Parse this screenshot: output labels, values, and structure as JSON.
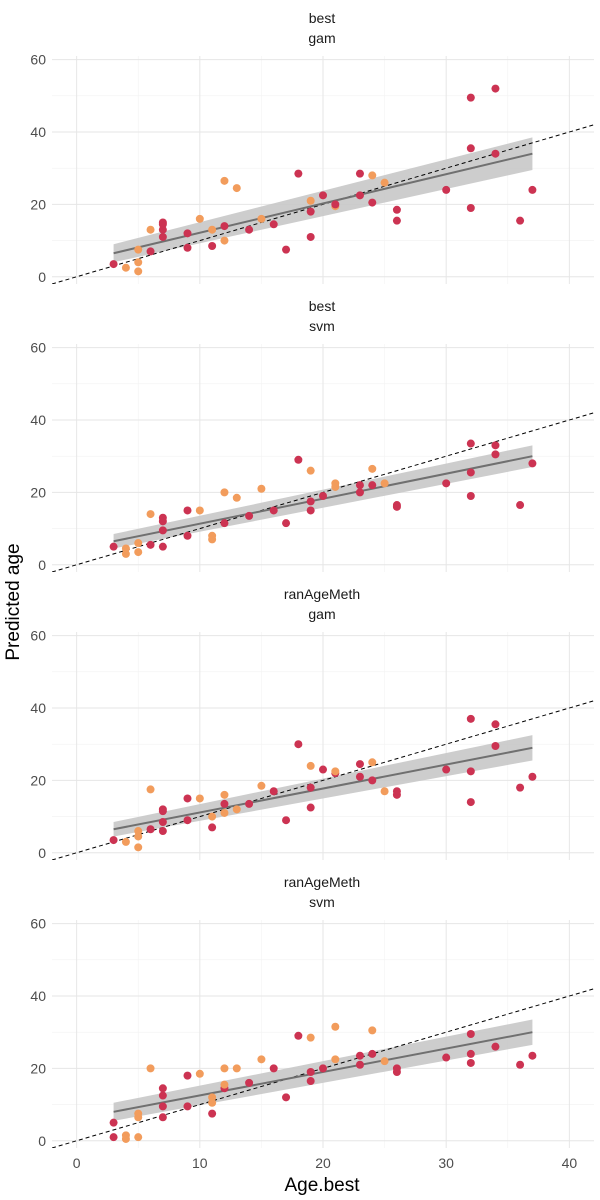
{
  "chart_data": {
    "type": "scatter",
    "xlabel": "Age.best",
    "ylabel": "Predicted age",
    "xlim": [
      -2,
      42
    ],
    "ylim": [
      -2,
      61
    ],
    "x_ticks": [
      0,
      10,
      20,
      30,
      40
    ],
    "y_ticks": [
      0,
      20,
      40,
      60
    ],
    "grid": true,
    "reference_line": "identity (dashed)",
    "colors": {
      "red": "#cc3352",
      "orange": "#f29c5c",
      "fit": "#707070",
      "band": "#c8c8c8"
    },
    "panels": [
      {
        "strip": [
          "best",
          "gam"
        ],
        "fit": {
          "x": [
            3,
            37
          ],
          "y": [
            6.5,
            34
          ],
          "se_lo": [
            4.0,
            29.5
          ],
          "se_hi": [
            9.0,
            38.5
          ]
        },
        "points": [
          [
            3,
            3.5,
            "red"
          ],
          [
            4,
            2.5,
            "orange"
          ],
          [
            5,
            1.5,
            "orange"
          ],
          [
            5,
            4,
            "orange"
          ],
          [
            5,
            7.5,
            "orange"
          ],
          [
            6,
            7,
            "red"
          ],
          [
            6,
            13,
            "orange"
          ],
          [
            7,
            11,
            "red"
          ],
          [
            7,
            13,
            "red"
          ],
          [
            7,
            14.5,
            "red"
          ],
          [
            7,
            15,
            "red"
          ],
          [
            9,
            8,
            "red"
          ],
          [
            9,
            12,
            "red"
          ],
          [
            10,
            16,
            "orange"
          ],
          [
            11,
            8.5,
            "red"
          ],
          [
            11,
            13,
            "orange"
          ],
          [
            12,
            10,
            "orange"
          ],
          [
            12,
            14,
            "red"
          ],
          [
            12,
            26.5,
            "orange"
          ],
          [
            13,
            24.5,
            "orange"
          ],
          [
            14,
            13,
            "red"
          ],
          [
            15,
            16,
            "orange"
          ],
          [
            16,
            14.5,
            "red"
          ],
          [
            17,
            7.5,
            "red"
          ],
          [
            18,
            28.5,
            "red"
          ],
          [
            19,
            11,
            "red"
          ],
          [
            19,
            18,
            "red"
          ],
          [
            19,
            21,
            "orange"
          ],
          [
            20,
            22.5,
            "red"
          ],
          [
            21,
            19.5,
            "orange"
          ],
          [
            21,
            20,
            "red"
          ],
          [
            23,
            22.5,
            "red"
          ],
          [
            23,
            28.5,
            "red"
          ],
          [
            24,
            20.5,
            "red"
          ],
          [
            24,
            28,
            "orange"
          ],
          [
            25,
            26,
            "orange"
          ],
          [
            26,
            15.5,
            "red"
          ],
          [
            26,
            18.5,
            "red"
          ],
          [
            30,
            24,
            "red"
          ],
          [
            32,
            19,
            "red"
          ],
          [
            32,
            35.5,
            "red"
          ],
          [
            32,
            49.5,
            "red"
          ],
          [
            34,
            34,
            "red"
          ],
          [
            34,
            52,
            "red"
          ],
          [
            36,
            15.5,
            "red"
          ],
          [
            37,
            24,
            "red"
          ]
        ]
      },
      {
        "strip": [
          "best",
          "svm"
        ],
        "fit": {
          "x": [
            3,
            37
          ],
          "y": [
            6.5,
            30
          ],
          "se_lo": [
            4.5,
            27
          ],
          "se_hi": [
            8.5,
            33
          ]
        },
        "points": [
          [
            3,
            5,
            "red"
          ],
          [
            4,
            3,
            "orange"
          ],
          [
            4,
            4.5,
            "orange"
          ],
          [
            5,
            3.5,
            "orange"
          ],
          [
            5,
            6,
            "orange"
          ],
          [
            6,
            5.5,
            "red"
          ],
          [
            6,
            14,
            "orange"
          ],
          [
            7,
            5,
            "red"
          ],
          [
            7,
            9.5,
            "red"
          ],
          [
            7,
            12,
            "red"
          ],
          [
            7,
            13,
            "red"
          ],
          [
            9,
            8,
            "red"
          ],
          [
            9,
            15,
            "red"
          ],
          [
            10,
            15,
            "orange"
          ],
          [
            11,
            7,
            "orange"
          ],
          [
            11,
            8,
            "orange"
          ],
          [
            12,
            11.5,
            "red"
          ],
          [
            12,
            20,
            "orange"
          ],
          [
            13,
            18.5,
            "orange"
          ],
          [
            14,
            13.5,
            "red"
          ],
          [
            15,
            21,
            "orange"
          ],
          [
            16,
            15,
            "red"
          ],
          [
            17,
            11.5,
            "red"
          ],
          [
            18,
            29,
            "red"
          ],
          [
            19,
            15,
            "red"
          ],
          [
            19,
            17.5,
            "red"
          ],
          [
            19,
            26,
            "orange"
          ],
          [
            20,
            19,
            "red"
          ],
          [
            21,
            21.5,
            "orange"
          ],
          [
            21,
            22.5,
            "orange"
          ],
          [
            23,
            20,
            "red"
          ],
          [
            23,
            22,
            "red"
          ],
          [
            24,
            22,
            "red"
          ],
          [
            24,
            26.5,
            "orange"
          ],
          [
            25,
            22.5,
            "orange"
          ],
          [
            26,
            16,
            "red"
          ],
          [
            26,
            16.5,
            "red"
          ],
          [
            30,
            22.5,
            "red"
          ],
          [
            32,
            19,
            "red"
          ],
          [
            32,
            25.5,
            "red"
          ],
          [
            32,
            33.5,
            "red"
          ],
          [
            34,
            30.5,
            "red"
          ],
          [
            34,
            33,
            "red"
          ],
          [
            36,
            16.5,
            "red"
          ],
          [
            37,
            28,
            "red"
          ]
        ]
      },
      {
        "strip": [
          "ranAgeMeth",
          "gam"
        ],
        "fit": {
          "x": [
            3,
            37
          ],
          "y": [
            6.5,
            29
          ],
          "se_lo": [
            4.5,
            25.5
          ],
          "se_hi": [
            8.5,
            32.5
          ]
        },
        "points": [
          [
            3,
            3.5,
            "red"
          ],
          [
            4,
            3,
            "orange"
          ],
          [
            5,
            1.5,
            "orange"
          ],
          [
            5,
            4.5,
            "orange"
          ],
          [
            5,
            6,
            "orange"
          ],
          [
            6,
            6.5,
            "red"
          ],
          [
            6,
            17.5,
            "orange"
          ],
          [
            7,
            6,
            "red"
          ],
          [
            7,
            8.5,
            "red"
          ],
          [
            7,
            11.5,
            "red"
          ],
          [
            7,
            12,
            "red"
          ],
          [
            9,
            9,
            "red"
          ],
          [
            9,
            15,
            "red"
          ],
          [
            10,
            15,
            "orange"
          ],
          [
            11,
            7,
            "red"
          ],
          [
            11,
            10,
            "orange"
          ],
          [
            12,
            11,
            "orange"
          ],
          [
            12,
            13.5,
            "red"
          ],
          [
            12,
            16,
            "orange"
          ],
          [
            13,
            12,
            "orange"
          ],
          [
            14,
            13.5,
            "red"
          ],
          [
            15,
            18.5,
            "orange"
          ],
          [
            16,
            17,
            "red"
          ],
          [
            17,
            9,
            "red"
          ],
          [
            18,
            30,
            "red"
          ],
          [
            19,
            12.5,
            "red"
          ],
          [
            19,
            18,
            "red"
          ],
          [
            19,
            24,
            "orange"
          ],
          [
            20,
            23,
            "red"
          ],
          [
            21,
            22,
            "red"
          ],
          [
            21,
            22.5,
            "orange"
          ],
          [
            23,
            21,
            "red"
          ],
          [
            23,
            24.5,
            "red"
          ],
          [
            24,
            20,
            "red"
          ],
          [
            24,
            25,
            "orange"
          ],
          [
            25,
            17,
            "orange"
          ],
          [
            26,
            16,
            "red"
          ],
          [
            26,
            17,
            "red"
          ],
          [
            30,
            23,
            "red"
          ],
          [
            32,
            14,
            "red"
          ],
          [
            32,
            22.5,
            "red"
          ],
          [
            32,
            37,
            "red"
          ],
          [
            34,
            29.5,
            "red"
          ],
          [
            34,
            35.5,
            "red"
          ],
          [
            36,
            18,
            "red"
          ],
          [
            37,
            21,
            "red"
          ]
        ]
      },
      {
        "strip": [
          "ranAgeMeth",
          "svm"
        ],
        "fit": {
          "x": [
            3,
            37
          ],
          "y": [
            8,
            30
          ],
          "se_lo": [
            5.5,
            26.5
          ],
          "se_hi": [
            10.5,
            33.5
          ]
        },
        "points": [
          [
            3,
            1,
            "red"
          ],
          [
            3,
            5,
            "red"
          ],
          [
            4,
            0.5,
            "orange"
          ],
          [
            4,
            1.5,
            "orange"
          ],
          [
            5,
            1,
            "orange"
          ],
          [
            5,
            6.5,
            "orange"
          ],
          [
            5,
            7.5,
            "orange"
          ],
          [
            6,
            20,
            "orange"
          ],
          [
            7,
            6.5,
            "red"
          ],
          [
            7,
            9.5,
            "red"
          ],
          [
            7,
            12.5,
            "red"
          ],
          [
            7,
            14.5,
            "red"
          ],
          [
            9,
            9.5,
            "red"
          ],
          [
            9,
            18,
            "red"
          ],
          [
            10,
            18.5,
            "orange"
          ],
          [
            11,
            7.5,
            "red"
          ],
          [
            11,
            10.5,
            "orange"
          ],
          [
            11,
            12,
            "orange"
          ],
          [
            12,
            14.5,
            "red"
          ],
          [
            12,
            15.5,
            "orange"
          ],
          [
            12,
            20,
            "orange"
          ],
          [
            13,
            20,
            "orange"
          ],
          [
            14,
            16,
            "red"
          ],
          [
            15,
            22.5,
            "orange"
          ],
          [
            16,
            20,
            "red"
          ],
          [
            17,
            12,
            "red"
          ],
          [
            18,
            29,
            "red"
          ],
          [
            19,
            16.5,
            "red"
          ],
          [
            19,
            19,
            "red"
          ],
          [
            19,
            28.5,
            "orange"
          ],
          [
            20,
            20,
            "red"
          ],
          [
            21,
            22.5,
            "orange"
          ],
          [
            21,
            31.5,
            "orange"
          ],
          [
            23,
            21,
            "red"
          ],
          [
            23,
            23.5,
            "red"
          ],
          [
            24,
            24,
            "red"
          ],
          [
            24,
            30.5,
            "orange"
          ],
          [
            25,
            22,
            "orange"
          ],
          [
            26,
            19,
            "red"
          ],
          [
            26,
            20,
            "red"
          ],
          [
            30,
            23,
            "red"
          ],
          [
            32,
            21.5,
            "red"
          ],
          [
            32,
            24,
            "red"
          ],
          [
            32,
            29.5,
            "red"
          ],
          [
            34,
            26,
            "red"
          ],
          [
            36,
            21,
            "red"
          ],
          [
            37,
            23.5,
            "red"
          ]
        ]
      }
    ]
  }
}
